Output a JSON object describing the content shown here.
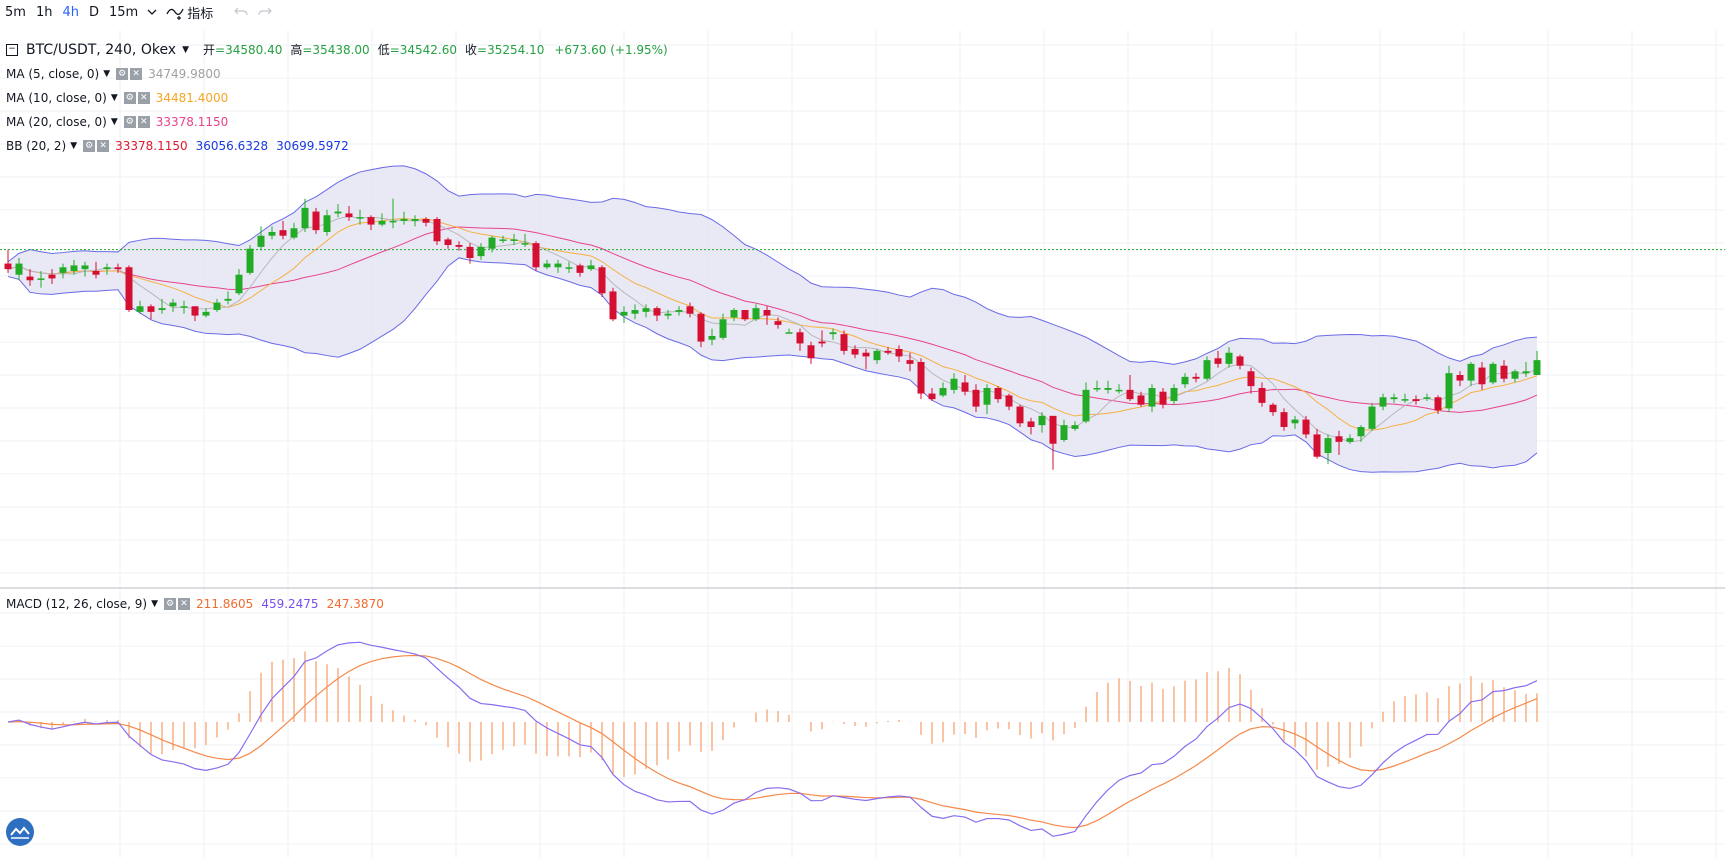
{
  "toolbar": {
    "timeframes": [
      "5m",
      "1h",
      "4h",
      "D",
      "15m"
    ],
    "active": "4h",
    "indicator_label": "指标"
  },
  "legend": {
    "symbol": "BTC/USDT, 240, Okex",
    "open_label": "开",
    "open": "34580.40",
    "high_label": "高",
    "high": "35438.00",
    "low_label": "低",
    "low": "34542.60",
    "close_label": "收",
    "close": "35254.10",
    "change": "+673.60 (+1.95%)",
    "indicators": [
      {
        "name": "MA (5, close, 0)",
        "values": [
          {
            "v": "34749.9800",
            "color": "#a0a0a0"
          }
        ]
      },
      {
        "name": "MA (10, close, 0)",
        "values": [
          {
            "v": "34481.4000",
            "color": "#f5a623"
          }
        ]
      },
      {
        "name": "MA (20, close, 0)",
        "values": [
          {
            "v": "33378.1150",
            "color": "#e8438a"
          }
        ]
      },
      {
        "name": "BB (20, 2)",
        "values": [
          {
            "v": "33378.1150",
            "color": "#e0192d"
          },
          {
            "v": "36056.6328",
            "color": "#1a3ae0"
          },
          {
            "v": "30699.5972",
            "color": "#1a3ae0"
          }
        ]
      }
    ]
  },
  "macd": {
    "name": "MACD (12, 26, close, 9)",
    "values": [
      {
        "v": "211.8605",
        "color": "#f26b2f"
      },
      {
        "v": "459.2475",
        "color": "#7b4ff0"
      },
      {
        "v": "247.3870",
        "color": "#f26b2f"
      }
    ]
  },
  "colors": {
    "up": "#22ab27",
    "down": "#d50f32",
    "ma5": "#b8b8b8",
    "ma10": "#f5b041",
    "ma20": "#e8438a",
    "bb_line": "#6a6ae8",
    "bb_fill": "#e3e3f4",
    "macd_line": "#8a6cf0",
    "signal_line": "#f5894a",
    "hist": "#f5894a",
    "grid": "#eef1f4",
    "current_price": "#22ab27"
  },
  "chart_data": {
    "type": "candlestick",
    "price_axis_visible": false,
    "grid": true,
    "current_price": 35254.1,
    "candles": [
      [
        34500,
        34200,
        35250,
        34000
      ],
      [
        33900,
        34500,
        34800,
        33600
      ],
      [
        33800,
        33600,
        34200,
        33300
      ],
      [
        33700,
        33700,
        34100,
        33200
      ],
      [
        33900,
        33700,
        34200,
        33400
      ],
      [
        34000,
        34300,
        34500,
        33700
      ],
      [
        34100,
        34400,
        34700,
        33900
      ],
      [
        34200,
        34400,
        34600,
        33800
      ],
      [
        34100,
        33900,
        34600,
        33700
      ],
      [
        34200,
        34300,
        34500,
        33900
      ],
      [
        34300,
        34200,
        34500,
        34000
      ],
      [
        34300,
        32000,
        34400,
        31900
      ],
      [
        31900,
        32200,
        32500,
        31800
      ],
      [
        32200,
        31900,
        32300,
        31500
      ],
      [
        32000,
        32100,
        32600,
        31800
      ],
      [
        32200,
        32400,
        32600,
        31900
      ],
      [
        32200,
        32200,
        32500,
        31800
      ],
      [
        32200,
        31700,
        32200,
        31400
      ],
      [
        31700,
        31900,
        32100,
        31600
      ],
      [
        32000,
        32400,
        32600,
        31900
      ],
      [
        32500,
        32600,
        33000,
        32300
      ],
      [
        32900,
        33900,
        34200,
        32800
      ],
      [
        34000,
        35300,
        35500,
        33900
      ],
      [
        35400,
        36000,
        36500,
        35200
      ],
      [
        36000,
        36200,
        36500,
        35800
      ],
      [
        36300,
        36000,
        36800,
        35800
      ],
      [
        35900,
        36400,
        36700,
        35800
      ],
      [
        36400,
        37500,
        38000,
        36200
      ],
      [
        37300,
        36300,
        37500,
        36100
      ],
      [
        36200,
        37100,
        37400,
        36000
      ],
      [
        37200,
        37300,
        37700,
        37000
      ],
      [
        37200,
        37000,
        37600,
        36800
      ],
      [
        37000,
        37000,
        37400,
        36600
      ],
      [
        37000,
        36600,
        37100,
        36300
      ],
      [
        36600,
        36800,
        37200,
        36500
      ],
      [
        36800,
        36800,
        38000,
        36400
      ],
      [
        36800,
        36900,
        37300,
        36600
      ],
      [
        36800,
        36900,
        37100,
        36500
      ],
      [
        36900,
        36700,
        37000,
        36500
      ],
      [
        36900,
        35700,
        37000,
        35500
      ],
      [
        35800,
        35500,
        35900,
        35300
      ],
      [
        35500,
        35400,
        35700,
        35200
      ],
      [
        35400,
        34800,
        35600,
        34500
      ],
      [
        34900,
        35400,
        35600,
        34700
      ],
      [
        35300,
        35900,
        36000,
        35100
      ],
      [
        35800,
        35800,
        36000,
        35600
      ],
      [
        35800,
        35800,
        36100,
        35500
      ],
      [
        35600,
        35600,
        36100,
        35400
      ],
      [
        35600,
        34300,
        35700,
        34100
      ],
      [
        34300,
        34500,
        34700,
        34200
      ],
      [
        34300,
        34500,
        34700,
        34000
      ],
      [
        34300,
        34300,
        34600,
        34000
      ],
      [
        34400,
        34000,
        34500,
        33800
      ],
      [
        34200,
        34400,
        34700,
        34100
      ],
      [
        34300,
        32900,
        34400,
        32700
      ],
      [
        33000,
        31500,
        33200,
        31400
      ],
      [
        31700,
        31900,
        32200,
        31300
      ],
      [
        31800,
        32000,
        32300,
        31500
      ],
      [
        31900,
        32100,
        32300,
        31600
      ],
      [
        32100,
        31700,
        32200,
        31400
      ],
      [
        31700,
        31800,
        32000,
        31500
      ],
      [
        31900,
        32000,
        32200,
        31700
      ],
      [
        32200,
        31800,
        32400,
        31600
      ],
      [
        31800,
        30300,
        31900,
        30000
      ],
      [
        30400,
        30600,
        31000,
        30100
      ],
      [
        30500,
        31500,
        31800,
        30400
      ],
      [
        31600,
        32000,
        32100,
        31400
      ],
      [
        32000,
        31500,
        32000,
        31400
      ],
      [
        31500,
        32100,
        32300,
        31400
      ],
      [
        32000,
        31700,
        32200,
        31200
      ],
      [
        31400,
        31200,
        31600,
        31000
      ],
      [
        30800,
        30800,
        31000,
        30800
      ],
      [
        30800,
        30200,
        31000,
        29800
      ],
      [
        30100,
        29400,
        30300,
        29100
      ],
      [
        30300,
        30200,
        30900,
        30000
      ],
      [
        30700,
        30800,
        31000,
        30400
      ],
      [
        30700,
        29800,
        30900,
        29600
      ],
      [
        29900,
        29600,
        30100,
        29400
      ],
      [
        29700,
        29500,
        29900,
        28800
      ],
      [
        29300,
        29800,
        29900,
        29100
      ],
      [
        29800,
        29700,
        30000,
        29600
      ],
      [
        29900,
        29500,
        30100,
        29200
      ],
      [
        29300,
        29100,
        29700,
        28700
      ],
      [
        29200,
        27500,
        29400,
        27200
      ],
      [
        27500,
        27200,
        27800,
        27100
      ],
      [
        27400,
        27800,
        28100,
        27300
      ],
      [
        27700,
        28300,
        28600,
        27500
      ],
      [
        28100,
        27600,
        28500,
        27400
      ],
      [
        27700,
        26800,
        28000,
        26500
      ],
      [
        26900,
        27800,
        28000,
        26400
      ],
      [
        27800,
        27200,
        27900,
        27000
      ],
      [
        27400,
        26800,
        27500,
        26600
      ],
      [
        26800,
        25900,
        26900,
        25700
      ],
      [
        26000,
        25700,
        26200,
        25300
      ],
      [
        25800,
        26300,
        26500,
        25400
      ],
      [
        26300,
        24800,
        26300,
        23400
      ],
      [
        25000,
        25800,
        26100,
        24900
      ],
      [
        25600,
        25800,
        26000,
        25500
      ],
      [
        26000,
        27700,
        28100,
        25900
      ],
      [
        27800,
        27800,
        28200,
        27600
      ],
      [
        27700,
        27800,
        28200,
        27500
      ],
      [
        27700,
        27700,
        28000,
        27500
      ],
      [
        27700,
        27200,
        28500,
        27100
      ],
      [
        27400,
        26900,
        27600,
        26800
      ],
      [
        26800,
        27800,
        28000,
        26500
      ],
      [
        27600,
        26900,
        27800,
        26700
      ],
      [
        27100,
        27800,
        28000,
        26900
      ],
      [
        28000,
        28400,
        28600,
        27800
      ],
      [
        28400,
        28300,
        28600,
        28100
      ],
      [
        28300,
        29300,
        29500,
        28200
      ],
      [
        29400,
        29100,
        29800,
        28900
      ],
      [
        29100,
        29700,
        30000,
        28900
      ],
      [
        29500,
        29000,
        29600,
        28800
      ],
      [
        28700,
        27900,
        28900,
        27500
      ],
      [
        27800,
        27000,
        28100,
        26800
      ],
      [
        26900,
        26500,
        27000,
        26300
      ],
      [
        26500,
        25700,
        26700,
        25500
      ],
      [
        25900,
        26100,
        26300,
        25600
      ],
      [
        26100,
        25300,
        26300,
        25100
      ],
      [
        25300,
        24100,
        25600,
        24000
      ],
      [
        24300,
        25100,
        25300,
        23700
      ],
      [
        25200,
        24900,
        25500,
        24200
      ],
      [
        24900,
        25100,
        25300,
        24800
      ],
      [
        25200,
        25700,
        25800,
        24900
      ],
      [
        25600,
        26800,
        27000,
        25500
      ],
      [
        26800,
        27300,
        27500,
        26600
      ],
      [
        27200,
        27300,
        27500,
        27000
      ],
      [
        27200,
        27200,
        27500,
        27000
      ],
      [
        27200,
        27100,
        27400,
        26900
      ],
      [
        27300,
        27300,
        27500,
        27100
      ],
      [
        27300,
        26600,
        27400,
        26400
      ],
      [
        26700,
        28600,
        29000,
        26500
      ],
      [
        28500,
        28200,
        28700,
        27900
      ],
      [
        28200,
        29100,
        29200,
        27900
      ],
      [
        28900,
        28000,
        29200,
        27700
      ],
      [
        28100,
        29100,
        29200,
        28000
      ],
      [
        29000,
        28300,
        29300,
        28100
      ],
      [
        28300,
        28700,
        28800,
        28100
      ],
      [
        28600,
        28700,
        29200,
        28400
      ],
      [
        28500,
        29300,
        29800,
        28500
      ]
    ]
  }
}
